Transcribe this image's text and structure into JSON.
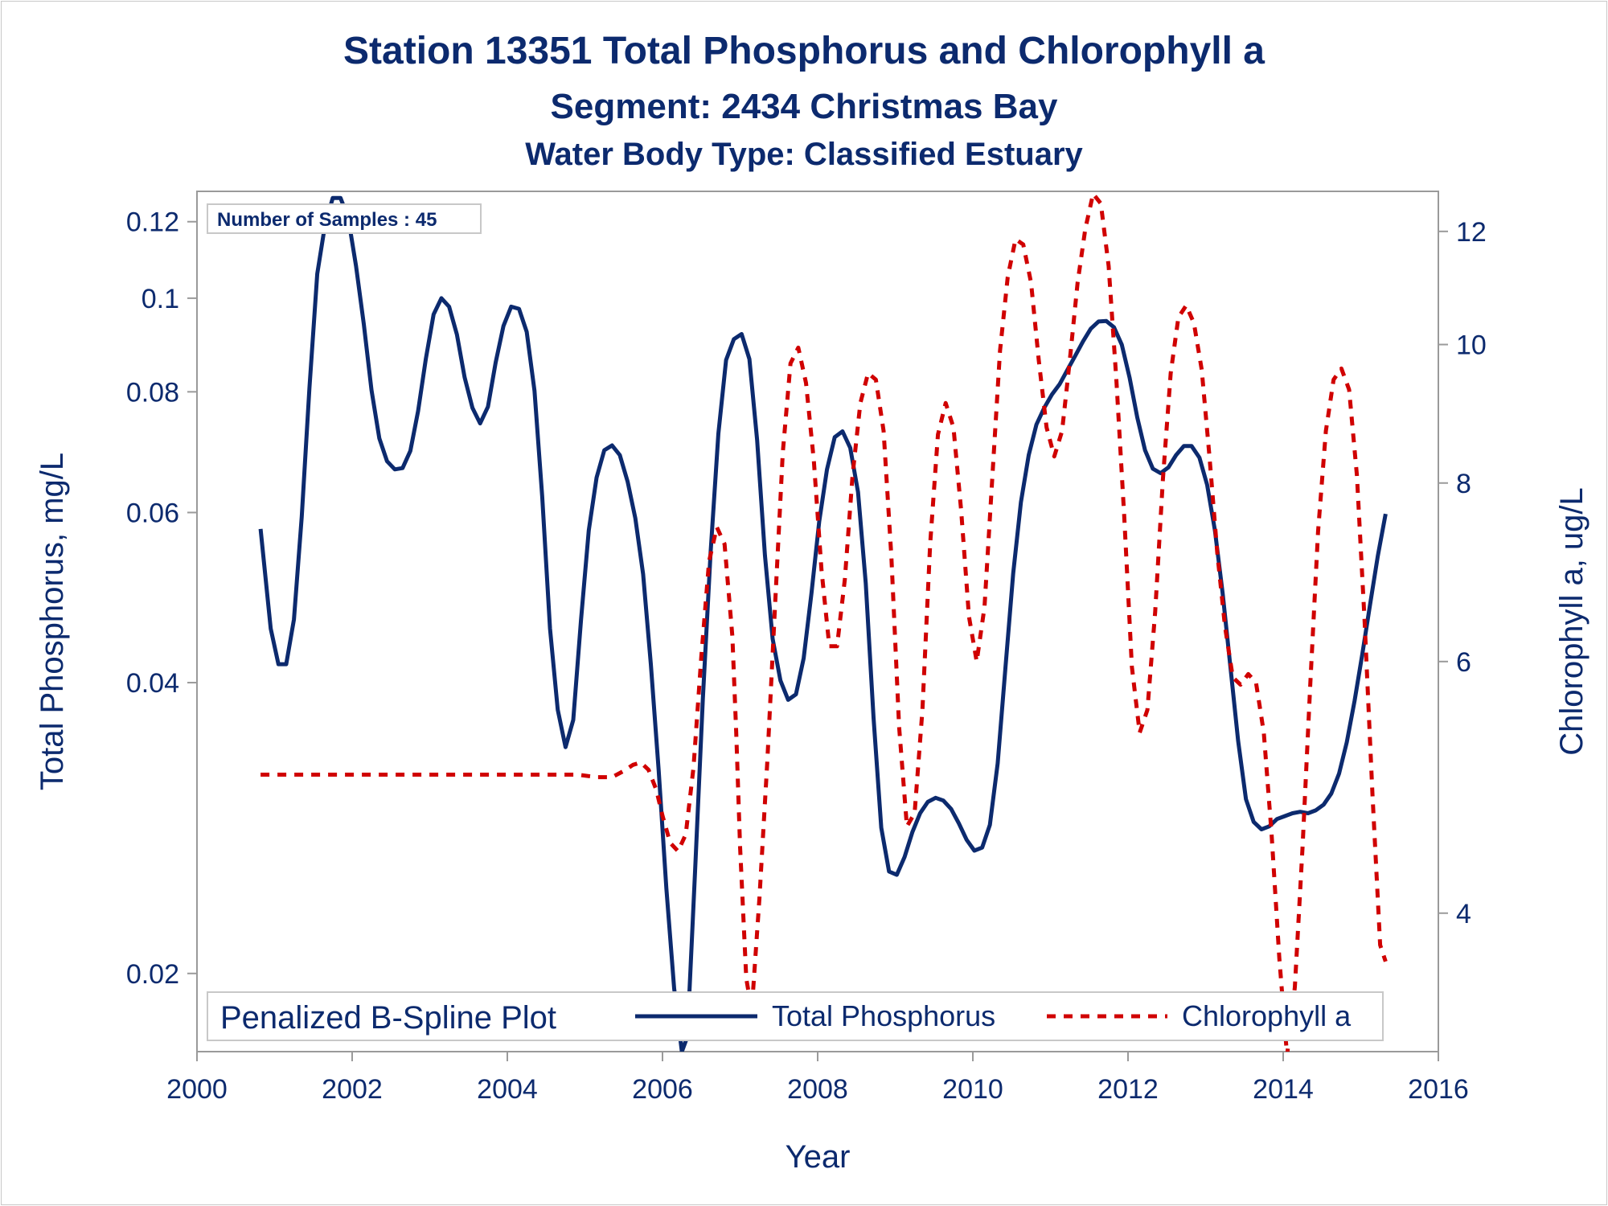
{
  "titles": {
    "line1": "Station 13351  Total Phosphorus and Chlorophyll a",
    "line2": "Segment: 2434  Christmas Bay",
    "line3": "Water Body Type: Classified Estuary"
  },
  "inset_label": "Number of Samples : 45",
  "legend": {
    "title": "Penalized B-Spline Plot",
    "series1": "Total Phosphorus",
    "series2": "Chlorophyll a"
  },
  "colors": {
    "text": "#0c2a6e",
    "phosphorus": "#0c2a6e",
    "chlorophyll": "#d00000",
    "axis": "#9a9a9a"
  },
  "chart_data": {
    "type": "line",
    "xlabel": "Year",
    "ylabel": "Total Phosphorus, mg/L",
    "y2label": "Chlorophyll a, ug/L",
    "xlim": [
      2000,
      2016
    ],
    "xticks": [
      2000,
      2002,
      2004,
      2006,
      2008,
      2010,
      2012,
      2014,
      2016
    ],
    "x_tick_labels": [
      "2000",
      "2002",
      "2004",
      "2006",
      "2008",
      "2010",
      "2012",
      "2014",
      "2016"
    ],
    "yscale": "log",
    "ylim": [
      0.0166,
      0.129
    ],
    "yticks": [
      0.02,
      0.04,
      0.06,
      0.08,
      0.1,
      0.12
    ],
    "y_tick_labels": [
      "0.02",
      "0.04",
      "0.06",
      "0.08",
      "0.1",
      "0.12"
    ],
    "y2scale": "log",
    "y2lim": [
      3.2,
      12.8
    ],
    "y2ticks": [
      4,
      6,
      8,
      10,
      12
    ],
    "y2_tick_labels": [
      "4",
      "6",
      "8",
      "10",
      "12"
    ],
    "legend_position": "bottom-inside",
    "grid": false,
    "series": [
      {
        "name": "Total Phosphorus",
        "axis": "left",
        "style": "solid",
        "points": [
          [
            2000.82,
            0.0577
          ],
          [
            2000.95,
            0.0455
          ],
          [
            2001.05,
            0.0418
          ],
          [
            2001.15,
            0.0418
          ],
          [
            2001.25,
            0.0465
          ],
          [
            2001.35,
            0.0594
          ],
          [
            2001.45,
            0.0808
          ],
          [
            2001.55,
            0.106
          ],
          [
            2001.65,
            0.119
          ],
          [
            2001.75,
            0.127
          ],
          [
            2001.85,
            0.127
          ],
          [
            2001.95,
            0.121
          ],
          [
            2002.05,
            0.108
          ],
          [
            2002.15,
            0.094
          ],
          [
            2002.25,
            0.0803
          ],
          [
            2002.35,
            0.0716
          ],
          [
            2002.45,
            0.0678
          ],
          [
            2002.55,
            0.0665
          ],
          [
            2002.65,
            0.0667
          ],
          [
            2002.75,
            0.0695
          ],
          [
            2002.85,
            0.0764
          ],
          [
            2002.95,
            0.0866
          ],
          [
            2003.05,
            0.0962
          ],
          [
            2003.15,
            0.1
          ],
          [
            2003.25,
            0.098
          ],
          [
            2003.35,
            0.0917
          ],
          [
            2003.45,
            0.0828
          ],
          [
            2003.55,
            0.077
          ],
          [
            2003.65,
            0.0742
          ],
          [
            2003.75,
            0.0772
          ],
          [
            2003.85,
            0.0858
          ],
          [
            2003.95,
            0.0936
          ],
          [
            2004.05,
            0.098
          ],
          [
            2004.15,
            0.0975
          ],
          [
            2004.25,
            0.0923
          ],
          [
            2004.35,
            0.0802
          ],
          [
            2004.45,
            0.0623
          ],
          [
            2004.55,
            0.0455
          ],
          [
            2004.65,
            0.0375
          ],
          [
            2004.75,
            0.0343
          ],
          [
            2004.85,
            0.0366
          ],
          [
            2004.95,
            0.0465
          ],
          [
            2005.05,
            0.0575
          ],
          [
            2005.15,
            0.0652
          ],
          [
            2005.25,
            0.0696
          ],
          [
            2005.35,
            0.0704
          ],
          [
            2005.45,
            0.0688
          ],
          [
            2005.55,
            0.0646
          ],
          [
            2005.65,
            0.0592
          ],
          [
            2005.75,
            0.0518
          ],
          [
            2005.85,
            0.0418
          ],
          [
            2005.95,
            0.0325
          ],
          [
            2006.05,
            0.0245
          ],
          [
            2006.15,
            0.0193
          ],
          [
            2006.25,
            0.0166
          ],
          [
            2006.32,
            0.0172
          ],
          [
            2006.42,
            0.0255
          ],
          [
            2006.52,
            0.0385
          ],
          [
            2006.62,
            0.0545
          ],
          [
            2006.72,
            0.0724
          ],
          [
            2006.82,
            0.0863
          ],
          [
            2006.92,
            0.0907
          ],
          [
            2007.02,
            0.0918
          ],
          [
            2007.12,
            0.0865
          ],
          [
            2007.22,
            0.0713
          ],
          [
            2007.32,
            0.0542
          ],
          [
            2007.42,
            0.0444
          ],
          [
            2007.52,
            0.0402
          ],
          [
            2007.62,
            0.0384
          ],
          [
            2007.72,
            0.0389
          ],
          [
            2007.82,
            0.0424
          ],
          [
            2007.92,
            0.0495
          ],
          [
            2008.02,
            0.0587
          ],
          [
            2008.12,
            0.0665
          ],
          [
            2008.22,
            0.0718
          ],
          [
            2008.32,
            0.0728
          ],
          [
            2008.42,
            0.07
          ],
          [
            2008.52,
            0.063
          ],
          [
            2008.62,
            0.0507
          ],
          [
            2008.72,
            0.0368
          ],
          [
            2008.82,
            0.0283
          ],
          [
            2008.92,
            0.0255
          ],
          [
            2009.02,
            0.0253
          ],
          [
            2009.12,
            0.0264
          ],
          [
            2009.22,
            0.028
          ],
          [
            2009.32,
            0.0293
          ],
          [
            2009.42,
            0.0301
          ],
          [
            2009.52,
            0.0304
          ],
          [
            2009.62,
            0.0302
          ],
          [
            2009.72,
            0.0296
          ],
          [
            2009.82,
            0.0286
          ],
          [
            2009.92,
            0.0275
          ],
          [
            2010.02,
            0.0268
          ],
          [
            2010.12,
            0.027
          ],
          [
            2010.22,
            0.0285
          ],
          [
            2010.32,
            0.033
          ],
          [
            2010.42,
            0.0414
          ],
          [
            2010.52,
            0.0519
          ],
          [
            2010.62,
            0.0615
          ],
          [
            2010.72,
            0.0688
          ],
          [
            2010.82,
            0.074
          ],
          [
            2010.92,
            0.077
          ],
          [
            2011.02,
            0.0795
          ],
          [
            2011.12,
            0.0815
          ],
          [
            2011.22,
            0.0843
          ],
          [
            2011.32,
            0.0872
          ],
          [
            2011.42,
            0.0902
          ],
          [
            2011.52,
            0.093
          ],
          [
            2011.62,
            0.0946
          ],
          [
            2011.72,
            0.0947
          ],
          [
            2011.82,
            0.0933
          ],
          [
            2011.92,
            0.0895
          ],
          [
            2012.02,
            0.0828
          ],
          [
            2012.12,
            0.0752
          ],
          [
            2012.22,
            0.0696
          ],
          [
            2012.32,
            0.0666
          ],
          [
            2012.42,
            0.0659
          ],
          [
            2012.52,
            0.0668
          ],
          [
            2012.62,
            0.0688
          ],
          [
            2012.72,
            0.0703
          ],
          [
            2012.82,
            0.0703
          ],
          [
            2012.92,
            0.0684
          ],
          [
            2013.02,
            0.0641
          ],
          [
            2013.12,
            0.0575
          ],
          [
            2013.22,
            0.0495
          ],
          [
            2013.32,
            0.0415
          ],
          [
            2013.42,
            0.0348
          ],
          [
            2013.52,
            0.0303
          ],
          [
            2013.62,
            0.0287
          ],
          [
            2013.72,
            0.0282
          ],
          [
            2013.82,
            0.0284
          ],
          [
            2013.92,
            0.0289
          ],
          [
            2014.02,
            0.0291
          ],
          [
            2014.12,
            0.0293
          ],
          [
            2014.22,
            0.0294
          ],
          [
            2014.32,
            0.0293
          ],
          [
            2014.42,
            0.0295
          ],
          [
            2014.52,
            0.0299
          ],
          [
            2014.62,
            0.0307
          ],
          [
            2014.72,
            0.0322
          ],
          [
            2014.82,
            0.0347
          ],
          [
            2014.92,
            0.0383
          ],
          [
            2015.02,
            0.0428
          ],
          [
            2015.12,
            0.0482
          ],
          [
            2015.22,
            0.0541
          ],
          [
            2015.32,
            0.0598
          ]
        ]
      },
      {
        "name": "Chlorophyll a",
        "axis": "right",
        "style": "dashed",
        "points": [
          [
            2000.82,
            5.0
          ],
          [
            2001.5,
            5.0
          ],
          [
            2002.5,
            5.0
          ],
          [
            2003.5,
            5.0
          ],
          [
            2004.5,
            5.0
          ],
          [
            2004.9,
            5.0
          ],
          [
            2005.15,
            4.98
          ],
          [
            2005.35,
            4.98
          ],
          [
            2005.5,
            5.03
          ],
          [
            2005.62,
            5.08
          ],
          [
            2005.72,
            5.1
          ],
          [
            2005.82,
            5.04
          ],
          [
            2005.92,
            4.88
          ],
          [
            2006.0,
            4.68
          ],
          [
            2006.1,
            4.48
          ],
          [
            2006.2,
            4.42
          ],
          [
            2006.3,
            4.54
          ],
          [
            2006.4,
            5.06
          ],
          [
            2006.5,
            6.05
          ],
          [
            2006.6,
            7.05
          ],
          [
            2006.7,
            7.45
          ],
          [
            2006.8,
            7.25
          ],
          [
            2006.9,
            6.25
          ],
          [
            2006.95,
            5.35
          ],
          [
            2007.0,
            4.45
          ],
          [
            2007.08,
            3.6
          ],
          [
            2007.15,
            3.42
          ],
          [
            2007.25,
            4.1
          ],
          [
            2007.35,
            5.1
          ],
          [
            2007.45,
            6.55
          ],
          [
            2007.55,
            8.4
          ],
          [
            2007.65,
            9.7
          ],
          [
            2007.75,
            9.95
          ],
          [
            2007.85,
            9.4
          ],
          [
            2007.95,
            8.3
          ],
          [
            2008.05,
            6.95
          ],
          [
            2008.15,
            6.15
          ],
          [
            2008.25,
            6.15
          ],
          [
            2008.35,
            6.85
          ],
          [
            2008.45,
            8.1
          ],
          [
            2008.55,
            9.1
          ],
          [
            2008.65,
            9.55
          ],
          [
            2008.75,
            9.45
          ],
          [
            2008.85,
            8.7
          ],
          [
            2008.95,
            7.1
          ],
          [
            2009.05,
            5.4
          ],
          [
            2009.15,
            4.6
          ],
          [
            2009.25,
            4.7
          ],
          [
            2009.35,
            5.55
          ],
          [
            2009.45,
            7.25
          ],
          [
            2009.55,
            8.65
          ],
          [
            2009.65,
            9.1
          ],
          [
            2009.75,
            8.75
          ],
          [
            2009.85,
            7.65
          ],
          [
            2009.95,
            6.45
          ],
          [
            2010.05,
            6.0
          ],
          [
            2010.15,
            6.55
          ],
          [
            2010.25,
            8.05
          ],
          [
            2010.35,
            9.9
          ],
          [
            2010.45,
            11.15
          ],
          [
            2010.55,
            11.85
          ],
          [
            2010.65,
            11.75
          ],
          [
            2010.75,
            11.05
          ],
          [
            2010.85,
            9.75
          ],
          [
            2010.95,
            8.75
          ],
          [
            2011.05,
            8.35
          ],
          [
            2011.15,
            8.7
          ],
          [
            2011.25,
            9.75
          ],
          [
            2011.35,
            11.05
          ],
          [
            2011.45,
            12.05
          ],
          [
            2011.55,
            12.75
          ],
          [
            2011.65,
            12.55
          ],
          [
            2011.75,
            11.35
          ],
          [
            2011.85,
            9.45
          ],
          [
            2011.95,
            7.6
          ],
          [
            2012.05,
            5.95
          ],
          [
            2012.15,
            5.35
          ],
          [
            2012.25,
            5.55
          ],
          [
            2012.35,
            6.5
          ],
          [
            2012.45,
            8.05
          ],
          [
            2012.55,
            9.55
          ],
          [
            2012.65,
            10.45
          ],
          [
            2012.75,
            10.65
          ],
          [
            2012.85,
            10.35
          ],
          [
            2012.95,
            9.6
          ],
          [
            2013.05,
            8.35
          ],
          [
            2013.15,
            7.15
          ],
          [
            2013.25,
            6.35
          ],
          [
            2013.35,
            5.85
          ],
          [
            2013.45,
            5.78
          ],
          [
            2013.55,
            5.88
          ],
          [
            2013.65,
            5.8
          ],
          [
            2013.75,
            5.35
          ],
          [
            2013.85,
            4.55
          ],
          [
            2013.95,
            3.72
          ],
          [
            2014.05,
            3.18
          ],
          [
            2014.15,
            3.55
          ],
          [
            2014.25,
            4.45
          ],
          [
            2014.35,
            5.8
          ],
          [
            2014.45,
            7.4
          ],
          [
            2014.55,
            8.7
          ],
          [
            2014.65,
            9.45
          ],
          [
            2014.75,
            9.62
          ],
          [
            2014.85,
            9.3
          ],
          [
            2014.95,
            8.1
          ],
          [
            2015.05,
            6.4
          ],
          [
            2015.15,
            4.85
          ],
          [
            2015.25,
            3.8
          ],
          [
            2015.32,
            3.7
          ]
        ]
      }
    ]
  }
}
